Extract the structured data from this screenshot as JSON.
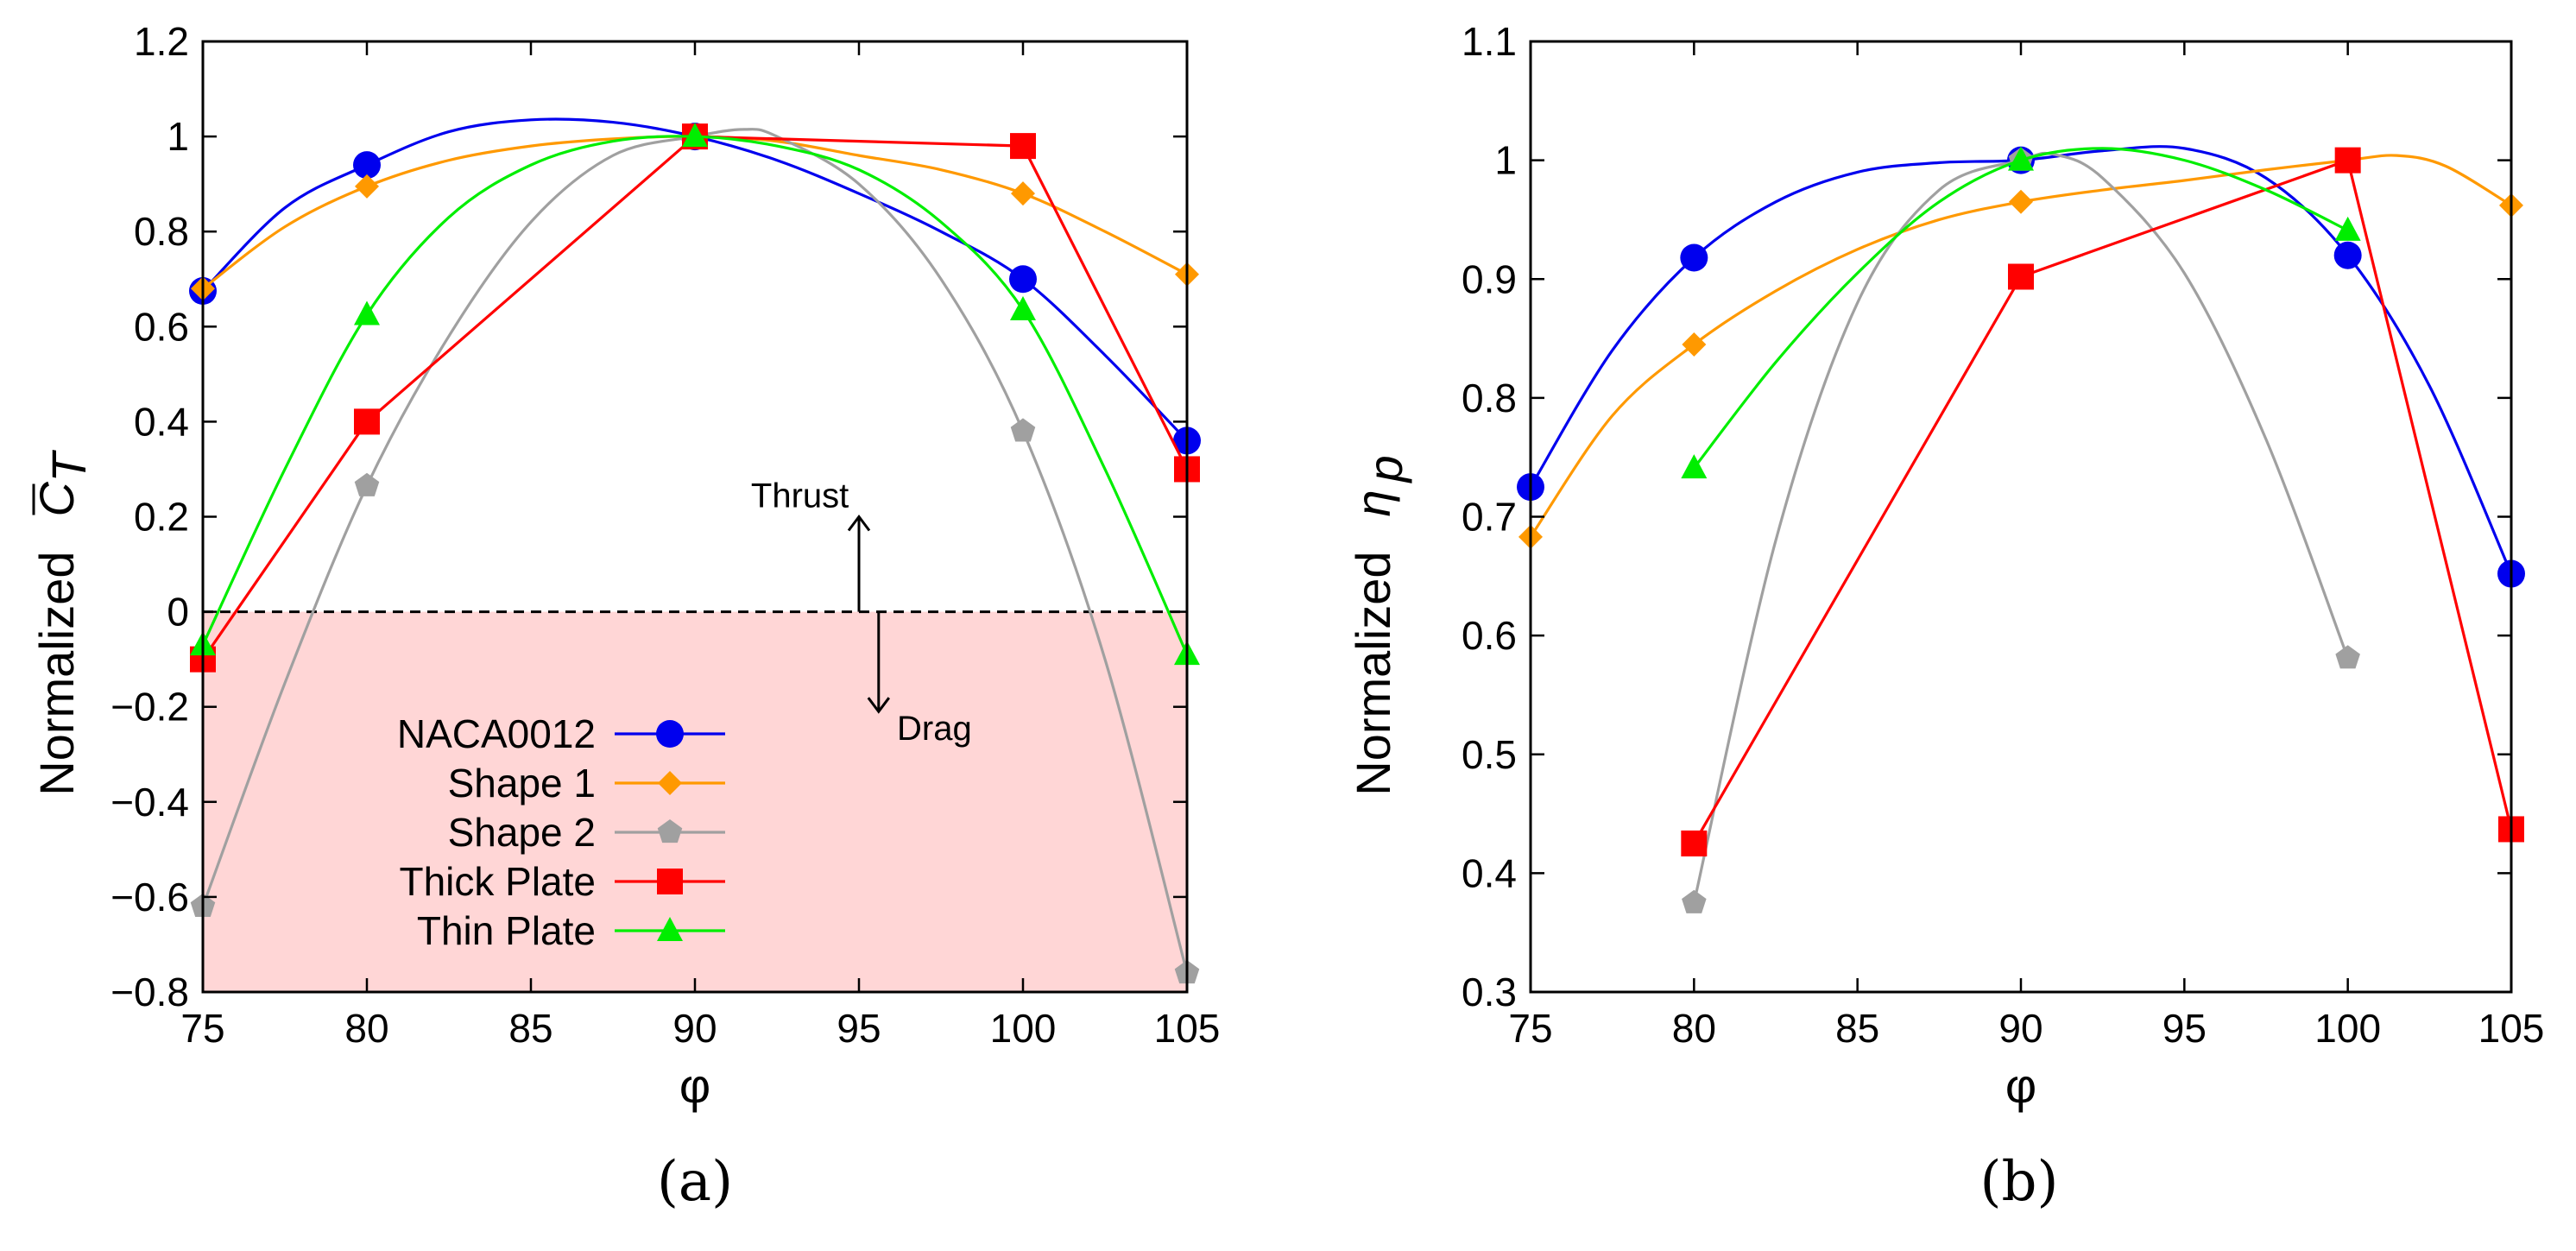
{
  "chart_data": [
    {
      "type": "line",
      "panel_label": "(a)",
      "xlabel": "φ",
      "ylabel_prefix": "Normalized",
      "ylabel_symbol": "C",
      "ylabel_subscript": "T",
      "x": [
        75,
        80,
        90,
        100,
        105
      ],
      "xlim": [
        75,
        105
      ],
      "ylim": [
        -0.8,
        1.2
      ],
      "xticks": [
        75,
        80,
        85,
        90,
        95,
        100,
        105
      ],
      "yticks": [
        -0.8,
        -0.6,
        -0.4,
        -0.2,
        0,
        0.2,
        0.4,
        0.6,
        0.8,
        1,
        1.2
      ],
      "xtick_labels": [
        "75",
        "80",
        "85",
        "90",
        "95",
        "100",
        "105"
      ],
      "ytick_labels": [
        "−0.8",
        "−0.6",
        "−0.4",
        "−0.2",
        "0",
        "0.2",
        "0.4",
        "0.6",
        "0.8",
        "1",
        "1.2"
      ],
      "grid": false,
      "shaded_region": {
        "y_from": -0.8,
        "y_to": 0,
        "color": "#ffd6d6"
      },
      "zero_line": {
        "y": 0,
        "style": "dashed"
      },
      "annotations": [
        {
          "text": "Thrust",
          "x": 93.2,
          "y": 0.22,
          "arrow": "up",
          "arrow_x": 95,
          "arrow_from": 0,
          "arrow_to": 0.2
        },
        {
          "text": "Drag",
          "x": 97.3,
          "y": -0.27,
          "arrow": "down",
          "arrow_x": 95.6,
          "arrow_from": 0,
          "arrow_to": -0.21
        }
      ],
      "legend_position": "bottom-left",
      "series": [
        {
          "name": "NACA0012",
          "color": "#0000ee",
          "marker": "circle",
          "smooth": true,
          "values": [
            0.675,
            0.94,
            1.0,
            0.7,
            0.36
          ],
          "curve_x": [
            75,
            77.5,
            80,
            82.5,
            85,
            87.5,
            90,
            92.5,
            95,
            97.5,
            100,
            102.5,
            105
          ],
          "curve_y": [
            0.675,
            0.85,
            0.94,
            1.01,
            1.035,
            1.03,
            1.0,
            0.95,
            0.88,
            0.8,
            0.7,
            0.54,
            0.36
          ]
        },
        {
          "name": "Shape 1",
          "color": "#ff9900",
          "marker": "diamond",
          "smooth": true,
          "values": [
            0.68,
            0.895,
            1.0,
            0.88,
            0.71
          ],
          "curve_x": [
            75,
            77.5,
            80,
            82.5,
            85,
            87.5,
            90,
            92.5,
            95,
            97.5,
            100,
            102.5,
            105
          ],
          "curve_y": [
            0.68,
            0.81,
            0.895,
            0.95,
            0.98,
            0.995,
            1.0,
            0.99,
            0.96,
            0.93,
            0.88,
            0.8,
            0.71
          ]
        },
        {
          "name": "Shape 2",
          "color": "#a0a0a0",
          "marker": "pentagon",
          "smooth": true,
          "values": [
            -0.62,
            0.265,
            1.0,
            0.38,
            -0.76
          ],
          "curve_x": [
            75,
            77.5,
            80,
            82.5,
            85,
            87.5,
            90,
            91.5,
            92.5,
            95,
            97.5,
            100,
            102.5,
            105
          ],
          "curve_y": [
            -0.62,
            -0.15,
            0.265,
            0.58,
            0.82,
            0.96,
            1.0,
            1.015,
            1.0,
            0.9,
            0.7,
            0.38,
            -0.1,
            -0.76
          ]
        },
        {
          "name": "Thick Plate",
          "color": "#ff0000",
          "marker": "square",
          "smooth": false,
          "values": [
            -0.1,
            0.4,
            1.0,
            0.98,
            0.3
          ],
          "curve_x": [
            75,
            80,
            90,
            100,
            105
          ],
          "curve_y": [
            -0.1,
            0.4,
            1.0,
            0.98,
            0.3
          ]
        },
        {
          "name": "Thin Plate",
          "color": "#00ee00",
          "marker": "triangle",
          "smooth": true,
          "values": [
            -0.07,
            0.625,
            1.0,
            0.635,
            -0.09
          ],
          "curve_x": [
            75,
            77.5,
            80,
            82.5,
            85,
            87.5,
            90,
            92.5,
            95,
            97.5,
            100,
            102.5,
            105
          ],
          "curve_y": [
            -0.07,
            0.3,
            0.625,
            0.83,
            0.94,
            0.99,
            1.0,
            0.98,
            0.93,
            0.82,
            0.635,
            0.3,
            -0.09
          ]
        }
      ]
    },
    {
      "type": "line",
      "panel_label": "(b)",
      "xlabel": "φ",
      "ylabel_prefix": "Normalized",
      "ylabel_symbol": "η",
      "ylabel_subscript": "p",
      "x": [
        75,
        80,
        90,
        100,
        105
      ],
      "xlim": [
        75,
        105
      ],
      "ylim": [
        0.3,
        1.1
      ],
      "xticks": [
        75,
        80,
        85,
        90,
        95,
        100,
        105
      ],
      "yticks": [
        0.3,
        0.4,
        0.5,
        0.6,
        0.7,
        0.8,
        0.9,
        1,
        1.1
      ],
      "xtick_labels": [
        "75",
        "80",
        "85",
        "90",
        "95",
        "100",
        "105"
      ],
      "ytick_labels": [
        "0.3",
        "0.4",
        "0.5",
        "0.6",
        "0.7",
        "0.8",
        "0.9",
        "1",
        "1.1"
      ],
      "grid": false,
      "series": [
        {
          "name": "NACA0012",
          "color": "#0000ee",
          "marker": "circle",
          "smooth": true,
          "x": [
            75,
            80,
            90,
            100,
            105
          ],
          "values": [
            0.725,
            0.918,
            1.0,
            0.92,
            0.652
          ],
          "curve_x": [
            75,
            77.5,
            80,
            82.5,
            85,
            87.5,
            90,
            92.5,
            95,
            97.5,
            100,
            102.5,
            105
          ],
          "curve_y": [
            0.725,
            0.84,
            0.918,
            0.965,
            0.99,
            0.998,
            1.0,
            1.008,
            1.01,
            0.985,
            0.92,
            0.81,
            0.652
          ]
        },
        {
          "name": "Shape 1",
          "color": "#ff9900",
          "marker": "diamond",
          "smooth": true,
          "x": [
            75,
            80,
            90,
            100,
            105
          ],
          "values": [
            0.683,
            0.845,
            0.965,
            1.0,
            0.962
          ],
          "curve_x": [
            75,
            77.5,
            80,
            82.5,
            85,
            87.5,
            90,
            92.5,
            95,
            97.5,
            100,
            101.5,
            103,
            105
          ],
          "curve_y": [
            0.683,
            0.785,
            0.845,
            0.89,
            0.925,
            0.95,
            0.965,
            0.975,
            0.983,
            0.992,
            1.0,
            1.004,
            0.995,
            0.962
          ]
        },
        {
          "name": "Shape 2",
          "color": "#a0a0a0",
          "marker": "pentagon",
          "smooth": true,
          "x": [
            80,
            90,
            100
          ],
          "values": [
            0.375,
            1.0,
            0.581
          ],
          "curve_x": [
            80,
            82.5,
            85,
            87.5,
            90,
            91,
            92.5,
            95,
            97.5,
            100
          ],
          "curve_y": [
            0.375,
            0.68,
            0.88,
            0.975,
            1.0,
            1.005,
            0.985,
            0.905,
            0.765,
            0.581
          ]
        },
        {
          "name": "Thick Plate",
          "color": "#ff0000",
          "marker": "square",
          "smooth": false,
          "x": [
            80,
            90,
            100,
            105
          ],
          "values": [
            0.425,
            0.902,
            1.0,
            0.437
          ],
          "curve_x": [
            80,
            90,
            100,
            105
          ],
          "curve_y": [
            0.425,
            0.902,
            1.0,
            0.437
          ]
        },
        {
          "name": "Thin Plate",
          "color": "#00ee00",
          "marker": "triangle",
          "smooth": true,
          "x": [
            80,
            90,
            100
          ],
          "values": [
            0.741,
            1.0,
            0.941
          ],
          "curve_x": [
            80,
            82.5,
            85,
            87.5,
            90,
            92.5,
            95,
            97.5,
            100
          ],
          "curve_y": [
            0.741,
            0.83,
            0.905,
            0.965,
            1.0,
            1.01,
            1.0,
            0.975,
            0.941
          ]
        }
      ]
    }
  ]
}
